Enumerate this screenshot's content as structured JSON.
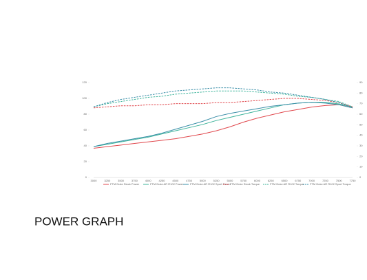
{
  "chart_data": {
    "type": "line",
    "footer_title": "POWER GRAPH",
    "categories": [
      "3000",
      "3250",
      "3500",
      "3750",
      "4000",
      "4250",
      "4500",
      "4750",
      "5000",
      "5250",
      "5500",
      "5750",
      "6000",
      "6250",
      "6500",
      "6750",
      "7000",
      "7250",
      "7500",
      "7750"
    ],
    "ylim": [
      0,
      120
    ],
    "yticks": [
      0,
      20,
      40,
      60,
      80,
      100,
      120
    ],
    "y2lim": [
      0,
      90
    ],
    "y2ticks": [
      0,
      10,
      20,
      30,
      40,
      50,
      60,
      70,
      80,
      90
    ],
    "series": [
      {
        "name": "FTM Duke Stock Power",
        "color": "#e0474c",
        "dashed": false,
        "values": [
          37,
          39,
          41,
          43,
          45,
          47,
          49,
          52,
          55,
          59,
          64,
          70,
          75,
          79,
          83,
          86,
          89,
          91,
          92,
          88
        ]
      },
      {
        "name": "FTM Duke AR R102 Power",
        "color": "#3cb39a",
        "dashed": false,
        "values": [
          39,
          42,
          45,
          48,
          51,
          55,
          59,
          63,
          67,
          72,
          76,
          80,
          84,
          88,
          92,
          94,
          95,
          95,
          93,
          89
        ]
      },
      {
        "name": "FTM Duke AR R102 Sport Power",
        "color": "#3a8fa8",
        "dashed": false,
        "values": [
          39,
          43,
          46,
          49,
          52,
          56,
          61,
          66,
          71,
          77,
          81,
          84,
          87,
          90,
          92,
          94,
          95,
          94,
          92,
          88
        ]
      },
      {
        "name": "FTM Duke Stock Torque",
        "color": "#e0474c",
        "dashed": true,
        "axis": "y2",
        "values": [
          66,
          67,
          68,
          68,
          69,
          69,
          70,
          70,
          70,
          71,
          71,
          72,
          73,
          74,
          75,
          75,
          74,
          73,
          71,
          67
        ]
      },
      {
        "name": "FTM Duke AR R102 Torque",
        "color": "#3cb39a",
        "dashed": true,
        "axis": "y2",
        "values": [
          67,
          70,
          72,
          74,
          76,
          77,
          79,
          80,
          81,
          82,
          82,
          82,
          81,
          80,
          79,
          77,
          76,
          74,
          72,
          67
        ]
      },
      {
        "name": "FTM Duke AR R102 Sport Torque",
        "color": "#3a8fa8",
        "dashed": true,
        "axis": "y2",
        "values": [
          67,
          71,
          74,
          76,
          78,
          80,
          82,
          83,
          84,
          85,
          85,
          84,
          83,
          81,
          80,
          78,
          76,
          74,
          71,
          66
        ]
      }
    ]
  }
}
